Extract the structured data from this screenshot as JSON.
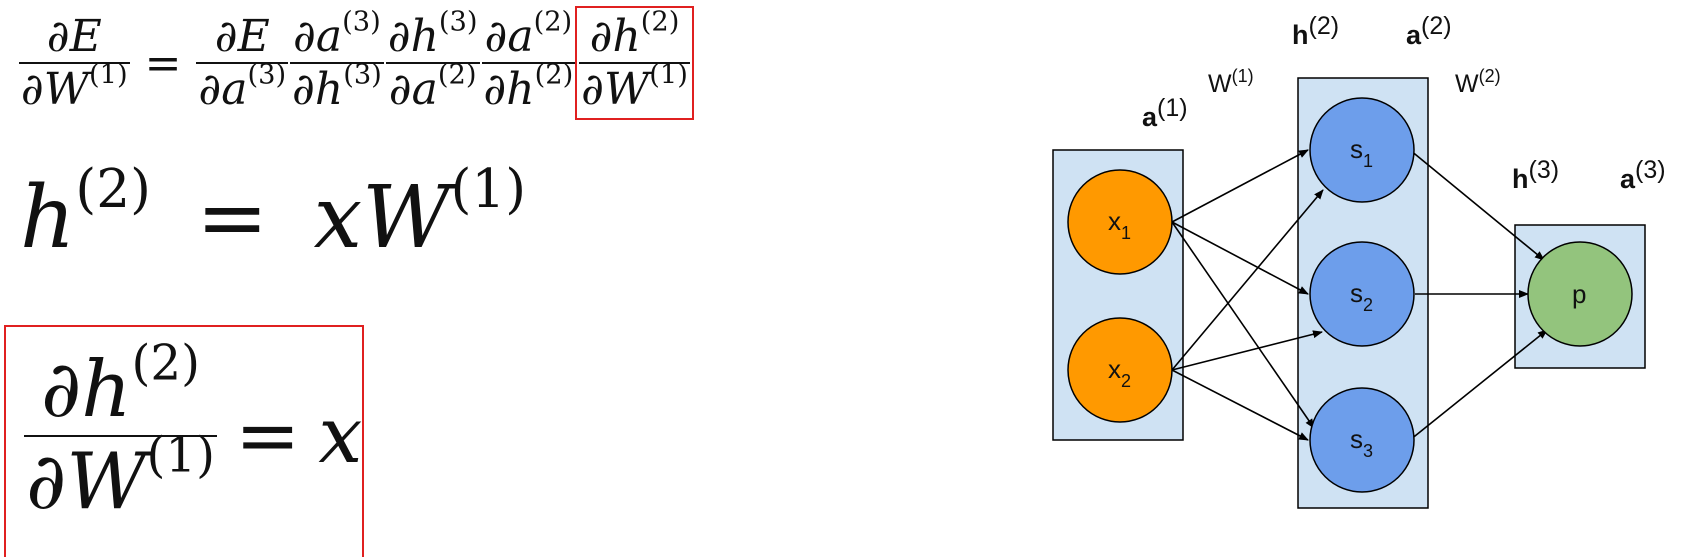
{
  "equations": {
    "eq1": {
      "lhs_num": "∂E",
      "lhs_den": "∂W",
      "lhs_den_sup": "(1)",
      "equals": "=",
      "terms": [
        {
          "num": "∂E",
          "num_sup": "",
          "den": "∂a",
          "den_sup": "(3)"
        },
        {
          "num": "∂a",
          "num_sup": "(3)",
          "den": "∂h",
          "den_sup": "(3)"
        },
        {
          "num": "∂h",
          "num_sup": "(3)",
          "den": "∂a",
          "den_sup": "(2)"
        },
        {
          "num": "∂a",
          "num_sup": "(2)",
          "den": "∂h",
          "den_sup": "(2)"
        },
        {
          "num": "∂h",
          "num_sup": "(2)",
          "den": "∂W",
          "den_sup": "(1)"
        }
      ]
    },
    "eq2": {
      "lhs": "h",
      "lhs_sup": "(2)",
      "equals": "=",
      "rhs": "xW",
      "rhs_sup": "(1)"
    },
    "eq3": {
      "num": "∂h",
      "num_sup": "(2)",
      "den": "∂W",
      "den_sup": "(1)",
      "equals": "=",
      "rhs": "x"
    },
    "highlight_color": "#e02020"
  },
  "diagram": {
    "layer_labels": {
      "a1": {
        "bold": "a",
        "sup": "(1)"
      },
      "W1": {
        "text": "W",
        "sup": "(1)"
      },
      "h2": {
        "bold": "h",
        "sup": "(2)"
      },
      "a2": {
        "bold": "a",
        "sup": "(2)"
      },
      "W2": {
        "text": "W",
        "sup": "(2)"
      },
      "h3": {
        "bold": "h",
        "sup": "(3)"
      },
      "a3": {
        "bold": "a",
        "sup": "(3)"
      }
    },
    "nodes": {
      "x1": {
        "base": "x",
        "sub": "1"
      },
      "x2": {
        "base": "x",
        "sub": "2"
      },
      "s1": {
        "base": "s",
        "sub": "1"
      },
      "s2": {
        "base": "s",
        "sub": "2"
      },
      "s3": {
        "base": "s",
        "sub": "3"
      },
      "p": {
        "base": "p",
        "sub": ""
      }
    },
    "colors": {
      "input": "#ff9900",
      "hidden": "#6d9eeb",
      "output": "#93c47d",
      "layer_box": "#cfe2f3",
      "edge": "#000000"
    }
  }
}
